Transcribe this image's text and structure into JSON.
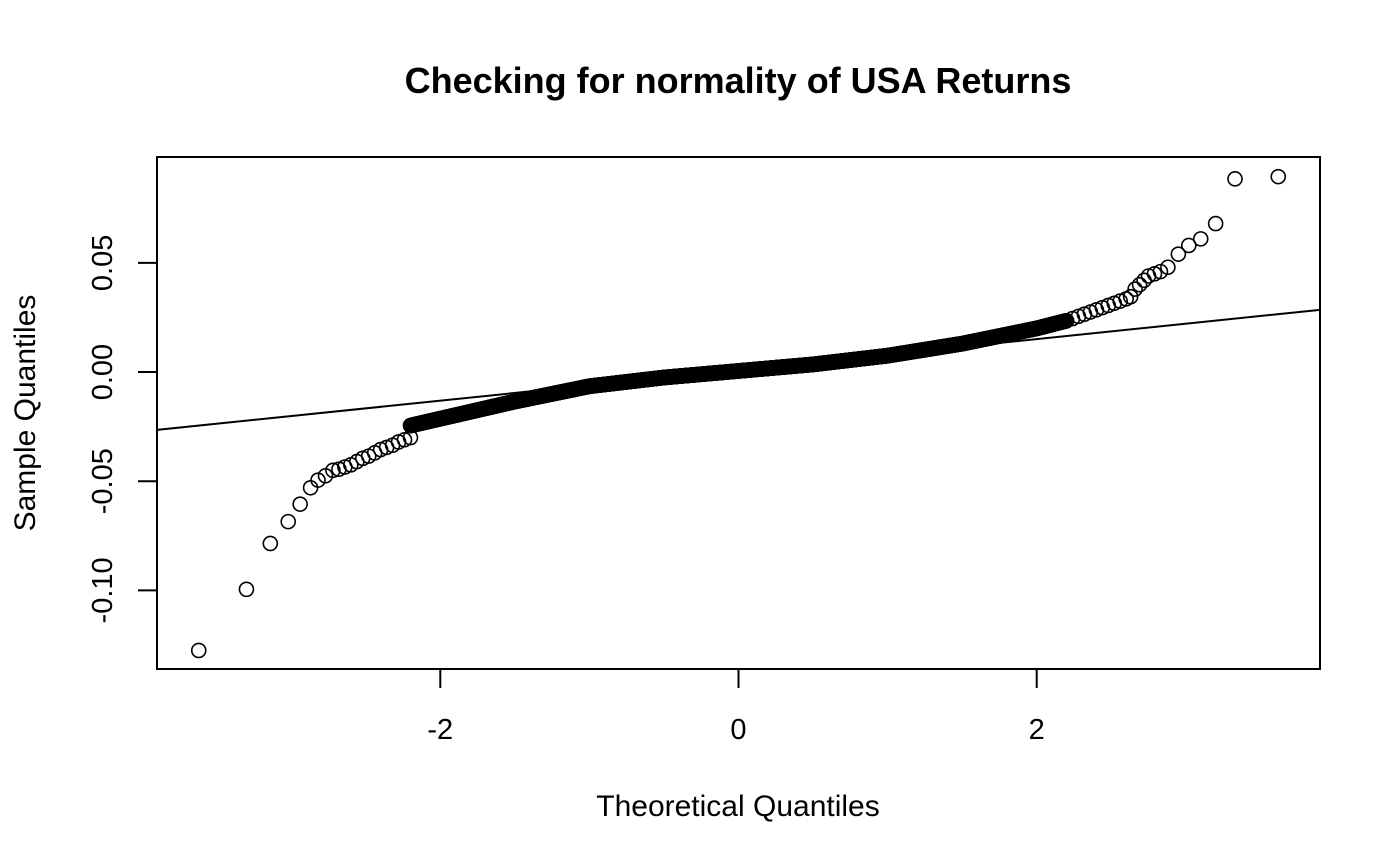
{
  "chart_data": {
    "type": "scatter",
    "title": "Checking for normality of USA Returns",
    "xlabel": "Theoretical Quantiles",
    "ylabel": "Sample Quantiles",
    "xlim": [
      -3.9,
      3.9
    ],
    "ylim": [
      -0.136,
      0.0985
    ],
    "x_ticks": [
      -2,
      0,
      2
    ],
    "x_tick_labels": [
      "-2",
      "0",
      "2"
    ],
    "y_ticks": [
      -0.1,
      -0.05,
      0.0,
      0.05
    ],
    "y_tick_labels": [
      "-0.10",
      "-0.05",
      "0.00",
      "0.05"
    ],
    "grid": false,
    "reference_line": {
      "x": [
        -3.9,
        3.9
      ],
      "y": [
        -0.0265,
        0.0285
      ]
    },
    "points_front": {
      "x": [
        -3.62,
        -3.3,
        -3.14,
        -3.02,
        -2.94,
        -2.87,
        -2.82,
        -2.77,
        -2.72,
        -2.68,
        -2.64,
        -2.6,
        -2.56,
        -2.52,
        -2.48,
        -2.44,
        -2.4,
        -2.36,
        -2.32,
        -2.28,
        -2.24,
        -2.2
      ],
      "y": [
        -0.1275,
        -0.0995,
        -0.0785,
        -0.0685,
        -0.0605,
        -0.053,
        -0.0495,
        -0.0475,
        -0.045,
        -0.0445,
        -0.0435,
        -0.0425,
        -0.041,
        -0.0395,
        -0.0385,
        -0.037,
        -0.0355,
        -0.0345,
        -0.0335,
        -0.032,
        -0.031,
        -0.03
      ]
    },
    "points_tail": {
      "x": [
        2.2,
        2.24,
        2.28,
        2.32,
        2.36,
        2.4,
        2.44,
        2.48,
        2.52,
        2.56,
        2.6,
        2.63,
        2.66,
        2.69,
        2.72,
        2.75,
        2.79,
        2.83,
        2.88,
        2.95,
        3.02,
        3.1,
        3.2,
        3.33,
        3.62
      ],
      "y": [
        0.0235,
        0.0245,
        0.0255,
        0.0265,
        0.0275,
        0.0285,
        0.0295,
        0.0305,
        0.0315,
        0.0325,
        0.0335,
        0.0345,
        0.038,
        0.04,
        0.042,
        0.044,
        0.045,
        0.046,
        0.048,
        0.054,
        0.058,
        0.061,
        0.068,
        0.0885,
        0.0895
      ]
    },
    "body_points": {
      "count": 3000,
      "x_range": [
        -2.2,
        2.2
      ],
      "profile_x": [
        -2.2,
        -1.5,
        -1.0,
        -0.5,
        0.0,
        0.5,
        1.0,
        1.5,
        2.0,
        2.2
      ],
      "profile_y": [
        -0.0245,
        -0.0135,
        -0.0065,
        -0.0025,
        0.0005,
        0.0035,
        0.0075,
        0.013,
        0.02,
        0.0235
      ]
    }
  }
}
